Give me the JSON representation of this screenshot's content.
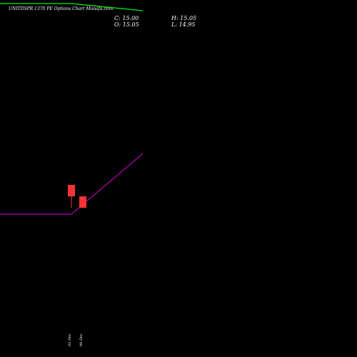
{
  "header": {
    "title": "UNITDSPR 1370 PE Options Chart Munafa.com",
    "close_label": "C: 15.00",
    "open_label": "O: 15.05",
    "high_label": "H: 15.05",
    "low_label": "L: 14.95"
  },
  "colors": {
    "background": "#000000",
    "green_line": "#00ee00",
    "magenta_line": "#aa00aa",
    "candle": "#ff3333",
    "text": "#ffffff"
  },
  "chart_data": {
    "type": "line",
    "title": "UNITDSPR 1370 PE Options Chart Munafa.com",
    "categories": [
      "",
      "03 Dec",
      "09 Dec"
    ],
    "series": [
      {
        "values": [
          99,
          99,
          97
        ]
      },
      {
        "values": [
          40,
          40,
          57
        ]
      }
    ],
    "ylim": [
      0,
      100
    ],
    "candles": [
      {
        "category": "03 Dec",
        "open": 15.05,
        "high": 15.05,
        "low": 14.95,
        "close": 15.0
      },
      {
        "category": "09 Dec",
        "open": 15.0,
        "high": 15.0,
        "low": 14.95,
        "close": 14.95
      }
    ],
    "x_ticks": [
      "03 Dec",
      "09 Dec"
    ],
    "grid": false
  }
}
